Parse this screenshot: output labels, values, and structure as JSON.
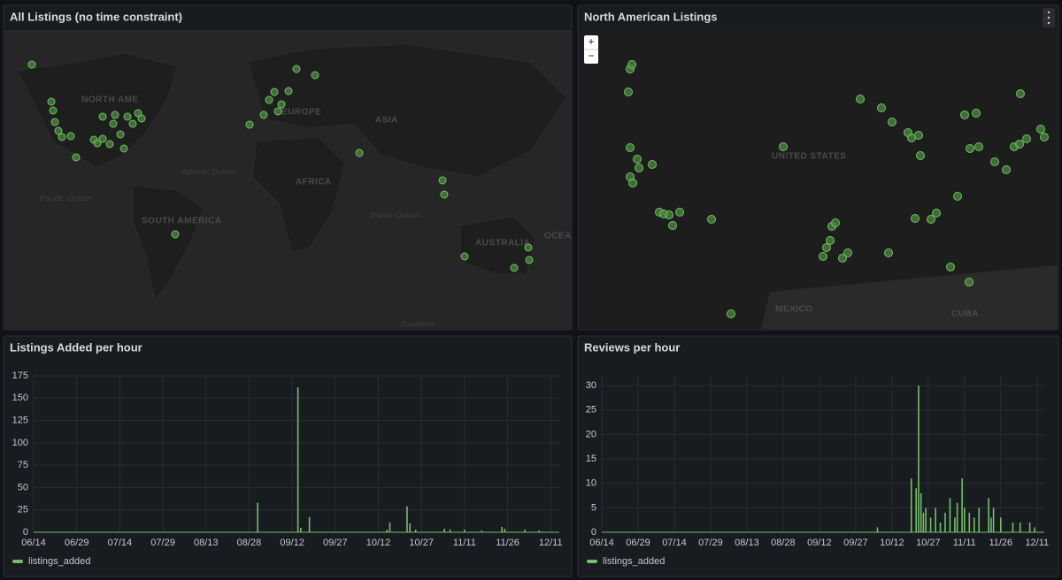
{
  "panels": [
    {
      "title": "All Listings (no time constraint)",
      "map_labels": [
        "NORTH AME",
        "EUROPE",
        "ASIA",
        "AFRICA",
        "Atlantic Ocean",
        "Pacific Ocean",
        "SOUTH AMERICA",
        "Indian Ocean",
        "AUSTRALIA",
        "OCEA",
        "Southern"
      ]
    },
    {
      "title": "North American Listings",
      "map_labels": [
        "UNITED STATES",
        "MEXICO",
        "CUBA"
      ],
      "zoom_controls": [
        "+",
        "−"
      ]
    },
    {
      "title": "Listings Added per hour",
      "chart_data": {
        "type": "bar",
        "x": [
          "08/31",
          "09/14",
          "09/15",
          "09/18",
          "10/15",
          "10/16",
          "10/22",
          "10/23",
          "10/25",
          "11/04",
          "11/06",
          "11/11",
          "11/17",
          "11/24",
          "11/25",
          "12/02",
          "12/07"
        ],
        "series": [
          {
            "name": "listings_added",
            "color": "#73bf69",
            "values": [
              33,
              162,
              5,
              17,
              3,
              11,
              29,
              10,
              3,
              4,
              3,
              3,
              2,
              6,
              4,
              3,
              2
            ]
          }
        ],
        "xlim": [
          "06/14",
          "12/14"
        ],
        "xticks": [
          "06/14",
          "06/29",
          "07/14",
          "07/29",
          "08/13",
          "08/28",
          "09/12",
          "09/27",
          "10/12",
          "10/27",
          "11/11",
          "11/26",
          "12/11"
        ],
        "ylim": [
          0,
          175
        ],
        "yticks": [
          0,
          25,
          50,
          75,
          100,
          125,
          150,
          175
        ],
        "grid": true
      }
    },
    {
      "title": "Reviews per hour",
      "chart_data": {
        "type": "bar",
        "x": [
          "10/06",
          "10/20",
          "10/22",
          "10/23",
          "10/24",
          "10/25",
          "10/26",
          "10/28",
          "10/30",
          "11/01",
          "11/03",
          "11/05",
          "11/07",
          "11/08",
          "11/10",
          "11/11",
          "11/13",
          "11/15",
          "11/17",
          "11/21",
          "11/22",
          "11/23",
          "11/26",
          "12/01",
          "12/04",
          "12/08",
          "12/10"
        ],
        "series": [
          {
            "name": "listings_added",
            "color": "#73bf69",
            "values": [
              1,
              11,
              9,
              30,
              8,
              4,
              5,
              3,
              5,
              2,
              4,
              7,
              3,
              6,
              11,
              5,
              4,
              3,
              5,
              7,
              3,
              5,
              3,
              2,
              2,
              2,
              1
            ]
          }
        ],
        "xlim": [
          "06/14",
          "12/14"
        ],
        "xticks": [
          "06/14",
          "06/29",
          "07/14",
          "07/29",
          "08/13",
          "08/28",
          "09/12",
          "09/27",
          "10/12",
          "10/27",
          "11/11",
          "11/26",
          "12/11"
        ],
        "ylim": [
          0,
          32
        ],
        "yticks": [
          0,
          5,
          10,
          15,
          20,
          25,
          30
        ],
        "grid": true
      }
    }
  ]
}
